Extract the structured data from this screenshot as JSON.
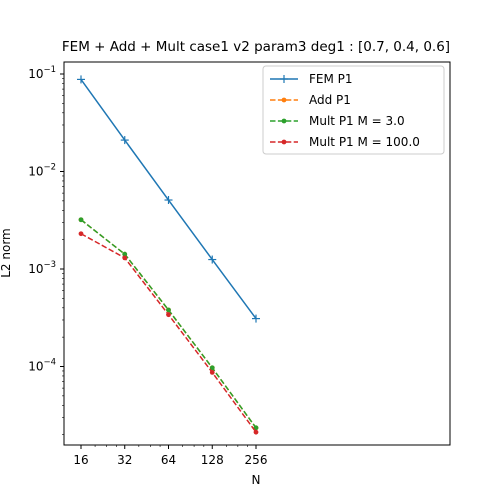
{
  "chart_data": {
    "type": "line",
    "title": "FEM + Add + Mult case1 v2 param3 deg1 : [0.7, 0.4, 0.6]",
    "xlabel": "N",
    "ylabel": "L2 norm",
    "xscale": "log2",
    "yscale": "log10",
    "x": [
      16,
      32,
      64,
      128,
      256
    ],
    "x_tick_labels": [
      "16",
      "32",
      "64",
      "128",
      "256"
    ],
    "y_tick_labels": [
      {
        "base": "10",
        "exp": "−1",
        "value": 0.1
      },
      {
        "base": "10",
        "exp": "−2",
        "value": 0.01
      },
      {
        "base": "10",
        "exp": "−3",
        "value": 0.001
      },
      {
        "base": "10",
        "exp": "−4",
        "value": 0.0001
      }
    ],
    "grid": false,
    "legend_position": "upper-right",
    "series": [
      {
        "name": "FEM P1",
        "color": "#1f77b4",
        "linestyle": "solid",
        "marker": "plus",
        "values": [
          0.088,
          0.021,
          0.0051,
          0.00125,
          0.00031
        ]
      },
      {
        "name": "Add P1",
        "color": "#ff7f0e",
        "linestyle": "dashed",
        "marker": "dot",
        "values": [
          0.0032,
          0.00142,
          0.00038,
          9.7e-05,
          2.35e-05
        ]
      },
      {
        "name": "Mult P1 M = 3.0",
        "color": "#2ca02c",
        "linestyle": "dashed",
        "marker": "dot",
        "values": [
          0.0032,
          0.00142,
          0.00038,
          9.7e-05,
          2.35e-05
        ]
      },
      {
        "name": "Mult P1 M = 100.0",
        "color": "#d62728",
        "linestyle": "dashed",
        "marker": "dot",
        "values": [
          0.0023,
          0.0013,
          0.00034,
          8.7e-05,
          2.12e-05
        ]
      }
    ]
  }
}
